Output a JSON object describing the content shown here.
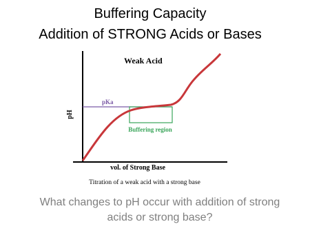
{
  "title": {
    "line1": "Buffering Capacity",
    "line2": "Addition of STRONG Acids or Bases"
  },
  "diagram": {
    "heading": "Weak Acid",
    "y_label": "pH",
    "pka_label": "pKa",
    "region_label": "Buffering region",
    "x_label": "vol. of Strong Base",
    "caption": "Titration of a weak acid with a strong base"
  },
  "question": {
    "line1": "What changes to pH occur with addition of strong",
    "line2": "acids or strong base?"
  }
}
